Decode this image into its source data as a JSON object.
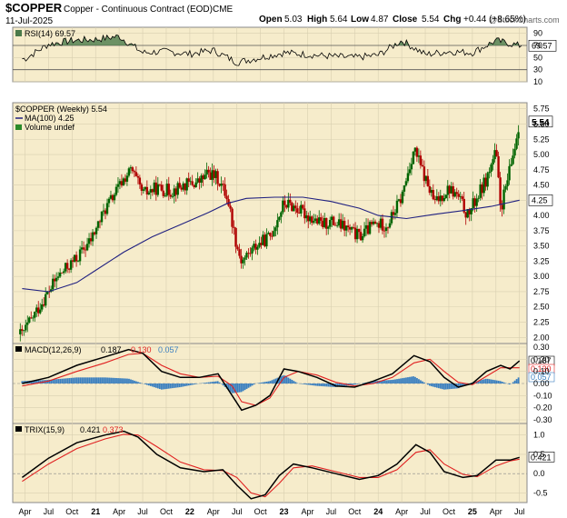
{
  "header": {
    "symbol": "$COPPER",
    "description": "Copper - Continuous Contract (EOD)",
    "exchange": "CME",
    "date": "11-Jul-2025",
    "open_label": "Open",
    "open": "5.03",
    "high_label": "High",
    "high": "5.64",
    "low_label": "Low",
    "low": "4.87",
    "close_label": "Close",
    "close": "5.54",
    "chg_label": "Chg",
    "chg": "+0.44 (+8.65%)",
    "watermark": "@StockCharts.com"
  },
  "colors": {
    "panel_bg": "#f6eccb",
    "up_candle": "#006400",
    "down_candle": "#b00000",
    "ma_line": "#202080",
    "rsi_fill": "#4a7a4a",
    "macd_line": "#000000",
    "signal_line": "#e02020",
    "hist": "#3a7fc0",
    "trix_line": "#000000",
    "trix_signal": "#e02020"
  },
  "chart_data": [
    {
      "type": "line",
      "panel": "rsi",
      "legend": "RSI(14) 69.57",
      "last_value_label": "69.57",
      "ylim": [
        10,
        100
      ],
      "y_ticks": [
        90,
        70,
        50,
        30,
        10
      ],
      "x": [
        2020.25,
        2020.5,
        2020.75,
        2021.0,
        2021.25,
        2021.5,
        2021.75,
        2022.0,
        2022.25,
        2022.5,
        2022.75,
        2023.0,
        2023.25,
        2023.5,
        2023.75,
        2024.0,
        2024.25,
        2024.5,
        2024.75,
        2025.0,
        2025.25,
        2025.5
      ],
      "values": [
        48,
        72,
        78,
        80,
        85,
        58,
        60,
        56,
        62,
        42,
        50,
        58,
        55,
        52,
        50,
        54,
        78,
        55,
        60,
        58,
        78,
        69.57
      ]
    },
    {
      "type": "candlestick",
      "panel": "price",
      "legend": "$COPPER (Weekly) 5.54",
      "ma_legend": "MA(100) 4.25",
      "volume_legend": "Volume undef",
      "last_price_label": "5.54",
      "ma_value_label": "4.25",
      "ylim": [
        1.9,
        5.85
      ],
      "y_ticks": [
        "5.75",
        "5.50",
        "5.25",
        "5.00",
        "4.75",
        "4.50",
        "4.25",
        "4.00",
        "3.75",
        "3.50",
        "3.25",
        "3.00",
        "2.75",
        "2.50",
        "2.25",
        "2.00"
      ],
      "price_path": [
        [
          2020.22,
          2.05
        ],
        [
          2020.4,
          2.5
        ],
        [
          2020.6,
          3.0
        ],
        [
          2020.8,
          3.3
        ],
        [
          2020.95,
          3.6
        ],
        [
          2021.1,
          4.1
        ],
        [
          2021.3,
          4.6
        ],
        [
          2021.38,
          4.75
        ],
        [
          2021.5,
          4.35
        ],
        [
          2021.65,
          4.45
        ],
        [
          2021.8,
          4.4
        ],
        [
          2021.95,
          4.5
        ],
        [
          2022.1,
          4.55
        ],
        [
          2022.2,
          4.7
        ],
        [
          2022.3,
          4.6
        ],
        [
          2022.4,
          4.3
        ],
        [
          2022.5,
          3.5
        ],
        [
          2022.55,
          3.25
        ],
        [
          2022.7,
          3.5
        ],
        [
          2022.85,
          3.65
        ],
        [
          2023.0,
          4.2
        ],
        [
          2023.1,
          4.15
        ],
        [
          2023.25,
          4.0
        ],
        [
          2023.4,
          3.85
        ],
        [
          2023.5,
          3.9
        ],
        [
          2023.65,
          3.8
        ],
        [
          2023.8,
          3.65
        ],
        [
          2023.95,
          3.85
        ],
        [
          2024.1,
          3.85
        ],
        [
          2024.25,
          4.3
        ],
        [
          2024.38,
          5.1
        ],
        [
          2024.5,
          4.6
        ],
        [
          2024.6,
          4.2
        ],
        [
          2024.75,
          4.45
        ],
        [
          2024.85,
          4.3
        ],
        [
          2024.95,
          4.0
        ],
        [
          2025.05,
          4.3
        ],
        [
          2025.15,
          4.6
        ],
        [
          2025.25,
          5.05
        ],
        [
          2025.3,
          4.1
        ],
        [
          2025.4,
          4.75
        ],
        [
          2025.5,
          5.54
        ]
      ],
      "ma_path": [
        [
          2020.22,
          2.8
        ],
        [
          2020.5,
          2.75
        ],
        [
          2020.8,
          2.9
        ],
        [
          2021.0,
          3.1
        ],
        [
          2021.3,
          3.4
        ],
        [
          2021.6,
          3.65
        ],
        [
          2021.9,
          3.85
        ],
        [
          2022.2,
          4.05
        ],
        [
          2022.4,
          4.2
        ],
        [
          2022.6,
          4.28
        ],
        [
          2022.9,
          4.3
        ],
        [
          2023.2,
          4.3
        ],
        [
          2023.5,
          4.23
        ],
        [
          2023.8,
          4.12
        ],
        [
          2024.0,
          4.0
        ],
        [
          2024.3,
          3.95
        ],
        [
          2024.6,
          4.02
        ],
        [
          2024.9,
          4.08
        ],
        [
          2025.2,
          4.15
        ],
        [
          2025.5,
          4.25
        ]
      ]
    },
    {
      "type": "line",
      "panel": "macd",
      "legend_name": "MACD(12,26,9)",
      "legend_values": [
        "0.187",
        "0.130",
        "0.057"
      ],
      "value_labels": [
        "0.187",
        "0.130",
        "0.057"
      ],
      "ylim": [
        -0.33,
        0.33
      ],
      "y_ticks": [
        "0.30",
        "0.20",
        "0.10",
        "0.00",
        "-0.10",
        "-0.20",
        "-0.30"
      ],
      "macd": [
        [
          2020.22,
          0.0
        ],
        [
          2020.5,
          0.05
        ],
        [
          2020.8,
          0.15
        ],
        [
          2021.1,
          0.22
        ],
        [
          2021.35,
          0.28
        ],
        [
          2021.5,
          0.25
        ],
        [
          2021.7,
          0.1
        ],
        [
          2021.9,
          0.05
        ],
        [
          2022.1,
          0.05
        ],
        [
          2022.3,
          0.08
        ],
        [
          2022.45,
          -0.1
        ],
        [
          2022.55,
          -0.22
        ],
        [
          2022.7,
          -0.18
        ],
        [
          2022.85,
          -0.1
        ],
        [
          2023.0,
          0.12
        ],
        [
          2023.15,
          0.1
        ],
        [
          2023.35,
          0.05
        ],
        [
          2023.55,
          -0.02
        ],
        [
          2023.75,
          -0.03
        ],
        [
          2023.95,
          0.02
        ],
        [
          2024.15,
          0.08
        ],
        [
          2024.38,
          0.23
        ],
        [
          2024.55,
          0.18
        ],
        [
          2024.7,
          0.05
        ],
        [
          2024.85,
          -0.03
        ],
        [
          2025.0,
          0.0
        ],
        [
          2025.15,
          0.1
        ],
        [
          2025.3,
          0.15
        ],
        [
          2025.4,
          0.12
        ],
        [
          2025.5,
          0.187
        ]
      ],
      "signal": [
        [
          2020.22,
          -0.02
        ],
        [
          2020.5,
          0.02
        ],
        [
          2020.8,
          0.1
        ],
        [
          2021.1,
          0.17
        ],
        [
          2021.35,
          0.24
        ],
        [
          2021.5,
          0.25
        ],
        [
          2021.7,
          0.15
        ],
        [
          2021.9,
          0.08
        ],
        [
          2022.1,
          0.05
        ],
        [
          2022.3,
          0.06
        ],
        [
          2022.45,
          -0.02
        ],
        [
          2022.55,
          -0.15
        ],
        [
          2022.7,
          -0.18
        ],
        [
          2022.85,
          -0.12
        ],
        [
          2023.0,
          0.05
        ],
        [
          2023.15,
          0.1
        ],
        [
          2023.35,
          0.07
        ],
        [
          2023.55,
          0.01
        ],
        [
          2023.75,
          -0.02
        ],
        [
          2023.95,
          0.0
        ],
        [
          2024.15,
          0.05
        ],
        [
          2024.38,
          0.17
        ],
        [
          2024.55,
          0.2
        ],
        [
          2024.7,
          0.1
        ],
        [
          2024.85,
          0.01
        ],
        [
          2025.0,
          -0.01
        ],
        [
          2025.15,
          0.06
        ],
        [
          2025.3,
          0.13
        ],
        [
          2025.4,
          0.13
        ],
        [
          2025.5,
          0.13
        ]
      ]
    },
    {
      "type": "line",
      "panel": "trix",
      "legend_name": "TRIX(15,9)",
      "legend_values": [
        "0.421",
        "0.373"
      ],
      "value_label": "0.421",
      "ylim": [
        -0.75,
        1.3
      ],
      "y_ticks": [
        "1.0",
        "0.5",
        "0.0",
        "-0.5"
      ],
      "trix": [
        [
          2020.22,
          -0.1
        ],
        [
          2020.5,
          0.4
        ],
        [
          2020.8,
          0.8
        ],
        [
          2021.1,
          1.0
        ],
        [
          2021.3,
          1.1
        ],
        [
          2021.45,
          0.95
        ],
        [
          2021.65,
          0.5
        ],
        [
          2021.9,
          0.15
        ],
        [
          2022.15,
          0.05
        ],
        [
          2022.35,
          0.1
        ],
        [
          2022.5,
          -0.3
        ],
        [
          2022.65,
          -0.65
        ],
        [
          2022.8,
          -0.55
        ],
        [
          2022.95,
          -0.05
        ],
        [
          2023.1,
          0.25
        ],
        [
          2023.3,
          0.15
        ],
        [
          2023.55,
          0.0
        ],
        [
          2023.8,
          -0.15
        ],
        [
          2024.0,
          -0.05
        ],
        [
          2024.2,
          0.25
        ],
        [
          2024.4,
          0.75
        ],
        [
          2024.55,
          0.55
        ],
        [
          2024.7,
          0.05
        ],
        [
          2024.9,
          -0.1
        ],
        [
          2025.05,
          -0.05
        ],
        [
          2025.25,
          0.35
        ],
        [
          2025.4,
          0.35
        ],
        [
          2025.5,
          0.421
        ]
      ],
      "signal": [
        [
          2020.22,
          -0.2
        ],
        [
          2020.5,
          0.25
        ],
        [
          2020.8,
          0.65
        ],
        [
          2021.1,
          0.9
        ],
        [
          2021.3,
          1.02
        ],
        [
          2021.45,
          1.0
        ],
        [
          2021.65,
          0.7
        ],
        [
          2021.9,
          0.3
        ],
        [
          2022.15,
          0.1
        ],
        [
          2022.35,
          0.08
        ],
        [
          2022.5,
          -0.1
        ],
        [
          2022.65,
          -0.5
        ],
        [
          2022.8,
          -0.6
        ],
        [
          2022.95,
          -0.25
        ],
        [
          2023.1,
          0.15
        ],
        [
          2023.3,
          0.2
        ],
        [
          2023.55,
          0.05
        ],
        [
          2023.8,
          -0.1
        ],
        [
          2024.0,
          -0.1
        ],
        [
          2024.2,
          0.1
        ],
        [
          2024.4,
          0.55
        ],
        [
          2024.55,
          0.62
        ],
        [
          2024.7,
          0.25
        ],
        [
          2024.9,
          -0.02
        ],
        [
          2025.05,
          -0.08
        ],
        [
          2025.25,
          0.2
        ],
        [
          2025.4,
          0.33
        ],
        [
          2025.5,
          0.373
        ]
      ]
    }
  ],
  "x_axis": {
    "labels": [
      "Apr",
      "Jul",
      "Oct",
      "21",
      "Apr",
      "Jul",
      "Oct",
      "22",
      "Apr",
      "Jul",
      "Oct",
      "23",
      "Apr",
      "Jul",
      "Oct",
      "24",
      "Apr",
      "Jul",
      "Oct",
      "25",
      "Apr",
      "Jul"
    ],
    "positions": [
      2020.25,
      2020.5,
      2020.75,
      2021.0,
      2021.25,
      2021.5,
      2021.75,
      2022.0,
      2022.25,
      2022.5,
      2022.75,
      2023.0,
      2023.25,
      2023.5,
      2023.75,
      2024.0,
      2024.25,
      2024.5,
      2024.75,
      2025.0,
      2025.25,
      2025.5
    ]
  }
}
